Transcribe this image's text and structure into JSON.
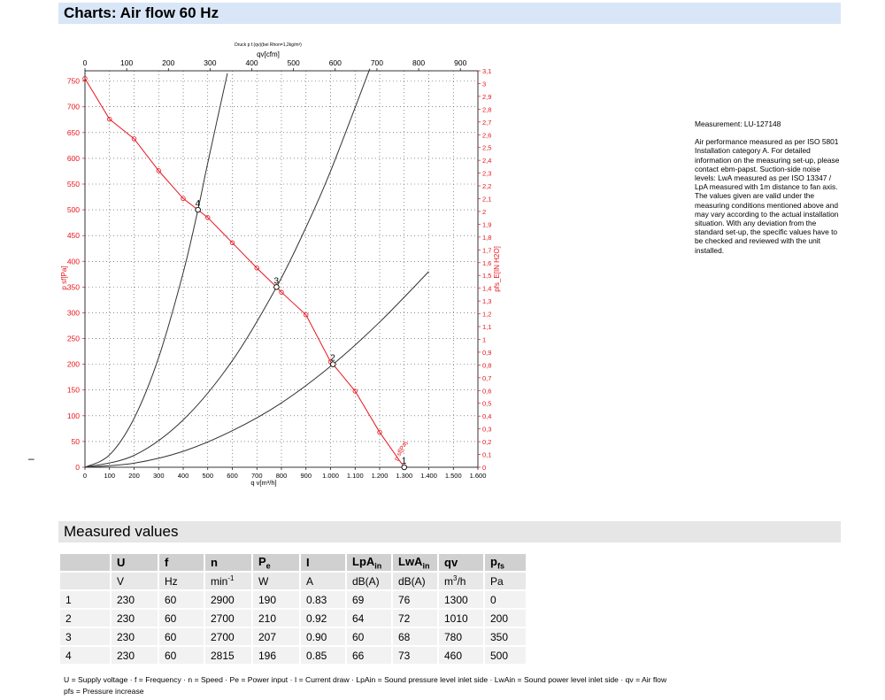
{
  "header": {
    "title": "Charts: Air flow 60 Hz"
  },
  "chart_data": {
    "type": "line",
    "title": "Druck p f.(qv)(bei Rhon=1,2kg/m³)",
    "x_bottom": {
      "label": "q v[m³/h]",
      "range": [
        0,
        1600
      ],
      "ticks": [
        0,
        100,
        200,
        300,
        400,
        500,
        600,
        700,
        800,
        900,
        1000,
        1100,
        1200,
        1300,
        1400,
        1500,
        1600
      ],
      "tick_labels": [
        "0",
        "100",
        "200",
        "300",
        "400",
        "500",
        "600",
        "700",
        "800",
        "900",
        "1.000",
        "1.100",
        "1.200",
        "1.300",
        "1.400",
        "1.500",
        "1.600"
      ]
    },
    "x_top": {
      "label": "qv[cfm]",
      "range": [
        0,
        942
      ],
      "ticks": [
        0,
        100,
        200,
        300,
        400,
        500,
        600,
        700,
        800,
        900
      ],
      "tick_labels": [
        "0",
        "100",
        "200",
        "300",
        "400",
        "500",
        "600",
        "700",
        "800",
        "900"
      ]
    },
    "y_left": {
      "label": "p sf[Pa]",
      "range": [
        0,
        770
      ],
      "ticks": [
        0,
        50,
        100,
        150,
        200,
        250,
        300,
        350,
        400,
        450,
        500,
        550,
        600,
        650,
        700,
        750
      ],
      "tick_labels": [
        "0",
        "50",
        "100",
        "150",
        "200",
        "250",
        "300",
        "350",
        "400",
        "450",
        "500",
        "550",
        "600",
        "650",
        "700",
        "750"
      ]
    },
    "y_right": {
      "label": "pfs_E[IN H2O]",
      "range": [
        0,
        3.1
      ],
      "ticks": [
        0,
        0.1,
        0.2,
        0.3,
        0.4,
        0.5,
        0.6,
        0.7,
        0.8,
        0.9,
        1,
        1.1,
        1.2,
        1.3,
        1.4,
        1.5,
        1.6,
        1.7,
        1.8,
        1.9,
        2,
        2.1,
        2.2,
        2.3,
        2.4,
        2.5,
        2.6,
        2.7,
        2.8,
        2.9,
        3,
        3.1
      ],
      "tick_labels": [
        "0",
        "0,1",
        "0,2",
        "0,3",
        "0,4",
        "0,5",
        "0,6",
        "0,7",
        "0,8",
        "0,9",
        "1",
        "1,1",
        "1,2",
        "1,3",
        "1,4",
        "1,5",
        "1,6",
        "1,7",
        "1,8",
        "1,9",
        "2",
        "2,1",
        "2,2",
        "2,3",
        "2,4",
        "2,5",
        "2,6",
        "2,7",
        "2,8",
        "2,9",
        "3",
        "3,1"
      ]
    },
    "grid": true,
    "fan_curve": {
      "color": "#e8141c",
      "label": "p sf[Pa]",
      "x": [
        0,
        100,
        200,
        300,
        400,
        460,
        500,
        600,
        700,
        780,
        800,
        900,
        1000,
        1010,
        1100,
        1200,
        1300
      ],
      "y": [
        755,
        676,
        638,
        576,
        522,
        500,
        485,
        436,
        387,
        350,
        340,
        296,
        205,
        200,
        148,
        68,
        0
      ]
    },
    "system_curves": [
      {
        "label": "4",
        "color": "#333333",
        "x": [
          0,
          100,
          200,
          300,
          400,
          460,
          500,
          580
        ],
        "y": [
          0,
          24,
          95,
          213,
          378,
          500,
          591,
          765
        ]
      },
      {
        "label": "3",
        "color": "#333333",
        "x": [
          0,
          200,
          400,
          600,
          780,
          900,
          1000,
          1160
        ],
        "y": [
          0,
          23,
          92,
          207,
          350,
          466,
          575,
          774
        ]
      },
      {
        "label": "2",
        "color": "#333333",
        "x": [
          0,
          200,
          400,
          600,
          800,
          1010,
          1200,
          1400
        ],
        "y": [
          0,
          8,
          31,
          71,
          125,
          200,
          282,
          380
        ]
      }
    ],
    "operating_points": [
      {
        "label": "1",
        "x": 1300,
        "y": 0
      },
      {
        "label": "2",
        "x": 1010,
        "y": 200
      },
      {
        "label": "3",
        "x": 780,
        "y": 350
      },
      {
        "label": "4",
        "x": 460,
        "y": 500
      }
    ],
    "curve_annotation": "p sf[Pa]"
  },
  "notes": {
    "measurement": "Measurement: LU-127148",
    "description": "Air performance measured as per ISO 5801 Installation category A. For detailed information on the measuring set-up, please contact ebm-papst. Suction-side noise levels: LwA measured as per ISO 13347 / LpA measured with 1m distance to fan axis. The values given are valid under the measuring conditions mentioned above and may vary according to the actual installation situation. With any deviation from the standard set-up, the specific values have to be checked and reviewed with the unit installed."
  },
  "dash_mark": "–",
  "measured": {
    "title": "Measured values",
    "headers": [
      "",
      "U",
      "f",
      "n",
      "Pe",
      "I",
      "LpAin",
      "LwAin",
      "qv",
      "pfs"
    ],
    "units": [
      "",
      "V",
      "Hz",
      "min-1",
      "W",
      "A",
      "dB(A)",
      "dB(A)",
      "m3/h",
      "Pa"
    ],
    "rows": [
      [
        "1",
        "230",
        "60",
        "2900",
        "190",
        "0.83",
        "69",
        "76",
        "1300",
        "0"
      ],
      [
        "2",
        "230",
        "60",
        "2700",
        "210",
        "0.92",
        "64",
        "72",
        "1010",
        "200"
      ],
      [
        "3",
        "230",
        "60",
        "2700",
        "207",
        "0.90",
        "60",
        "68",
        "780",
        "350"
      ],
      [
        "4",
        "230",
        "60",
        "2815",
        "196",
        "0.85",
        "66",
        "73",
        "460",
        "500"
      ]
    ]
  },
  "legend": {
    "line1": "U = Supply voltage · f = Frequency · n = Speed · Pe = Power input · I = Current draw · LpAin = Sound pressure level inlet side · LwAin = Sound power level inlet side · qv = Air flow",
    "line2": "pfs = Pressure increase"
  }
}
